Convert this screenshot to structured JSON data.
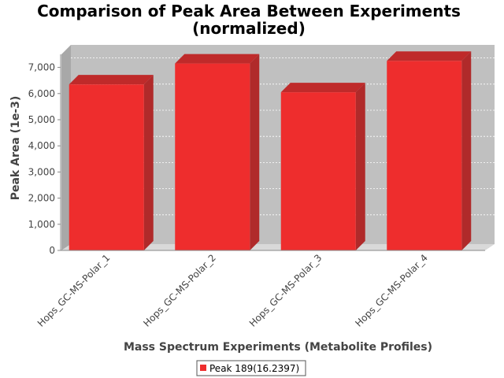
{
  "chart_data": {
    "type": "bar",
    "title": "Comparison of Peak Area Between Experiments",
    "subtitle": "(normalized)",
    "xlabel": "Mass Spectrum Experiments (Metabolite Profiles)",
    "ylabel": "Peak Area (1e-3)",
    "categories": [
      "Hops_GC-MS-Polar_1",
      "Hops_GC-MS-Polar_2",
      "Hops_GC-MS-Polar_3",
      "Hops_GC-MS-Polar_4"
    ],
    "series": [
      {
        "name": "Peak 189(16.2397)",
        "values": [
          6350,
          7150,
          6050,
          7250
        ],
        "color": "#ee2d2d"
      }
    ],
    "ylim": [
      0,
      7500
    ],
    "yticks": [
      0,
      1000,
      2000,
      3000,
      4000,
      5000,
      6000,
      7000
    ],
    "ytick_labels": [
      "0",
      "1,000",
      "2,000",
      "3,000",
      "4,000",
      "5,000",
      "6,000",
      "7,000"
    ],
    "grid": true,
    "style": "3d",
    "legend_position": "bottom"
  }
}
